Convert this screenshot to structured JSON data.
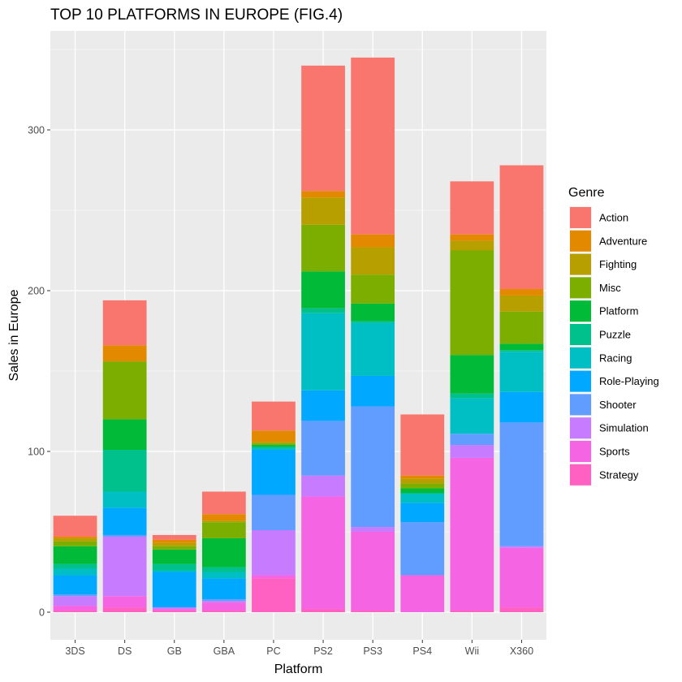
{
  "chart_data": {
    "type": "bar",
    "stacked": true,
    "title": "TOP 10 PLATFORMS IN EUROPE (FIG.4)",
    "xlabel": "Platform",
    "ylabel": "Sales in Europe",
    "ylim": [
      0,
      350
    ],
    "yticks": [
      0,
      100,
      200,
      300
    ],
    "grid": true,
    "legend_position": "right",
    "legend_title": "Genre",
    "categories": [
      "3DS",
      "DS",
      "GB",
      "GBA",
      "PC",
      "PS2",
      "PS3",
      "PS4",
      "Wii",
      "X360"
    ],
    "series": [
      {
        "name": "Strategy",
        "color": "#FF61C3",
        "values": [
          1,
          3,
          1,
          1,
          21,
          2,
          1,
          0,
          1,
          3
        ]
      },
      {
        "name": "Sports",
        "color": "#F564E3",
        "values": [
          3,
          7,
          1,
          5,
          2,
          70,
          49,
          23,
          95,
          37
        ]
      },
      {
        "name": "Simulation",
        "color": "#C77CFF",
        "values": [
          6,
          37,
          1,
          1,
          28,
          13,
          3,
          0,
          8,
          1
        ]
      },
      {
        "name": "Shooter",
        "color": "#619CFF",
        "values": [
          1,
          1,
          0,
          1,
          22,
          34,
          75,
          33,
          7,
          77
        ]
      },
      {
        "name": "Role-Playing",
        "color": "#00A9FF",
        "values": [
          12,
          17,
          22,
          13,
          28,
          19,
          19,
          12,
          0,
          19
        ]
      },
      {
        "name": "Racing",
        "color": "#00BFC4",
        "values": [
          4,
          10,
          1,
          4,
          1,
          48,
          33,
          6,
          22,
          25
        ]
      },
      {
        "name": "Puzzle",
        "color": "#00C08B",
        "values": [
          3,
          26,
          4,
          3,
          1,
          3,
          1,
          0,
          3,
          1
        ]
      },
      {
        "name": "Platform",
        "color": "#00BA38",
        "values": [
          11,
          19,
          9,
          18,
          1,
          23,
          11,
          3,
          24,
          4
        ]
      },
      {
        "name": "Misc",
        "color": "#7CAE00",
        "values": [
          3,
          36,
          2,
          10,
          1,
          29,
          18,
          3,
          65,
          20
        ]
      },
      {
        "name": "Fighting",
        "color": "#B79F00",
        "values": [
          2,
          0,
          2,
          1,
          1,
          17,
          17,
          3,
          6,
          10
        ]
      },
      {
        "name": "Adventure",
        "color": "#E38900",
        "values": [
          1,
          10,
          2,
          4,
          7,
          4,
          8,
          2,
          4,
          4
        ]
      },
      {
        "name": "Action",
        "color": "#F8766D",
        "values": [
          13,
          28,
          3,
          14,
          18,
          78,
          110,
          38,
          33,
          77
        ]
      }
    ]
  },
  "legend": {
    "title": "Genre",
    "items": [
      "Action",
      "Adventure",
      "Fighting",
      "Misc",
      "Platform",
      "Puzzle",
      "Racing",
      "Role-Playing",
      "Shooter",
      "Simulation",
      "Sports",
      "Strategy"
    ]
  }
}
